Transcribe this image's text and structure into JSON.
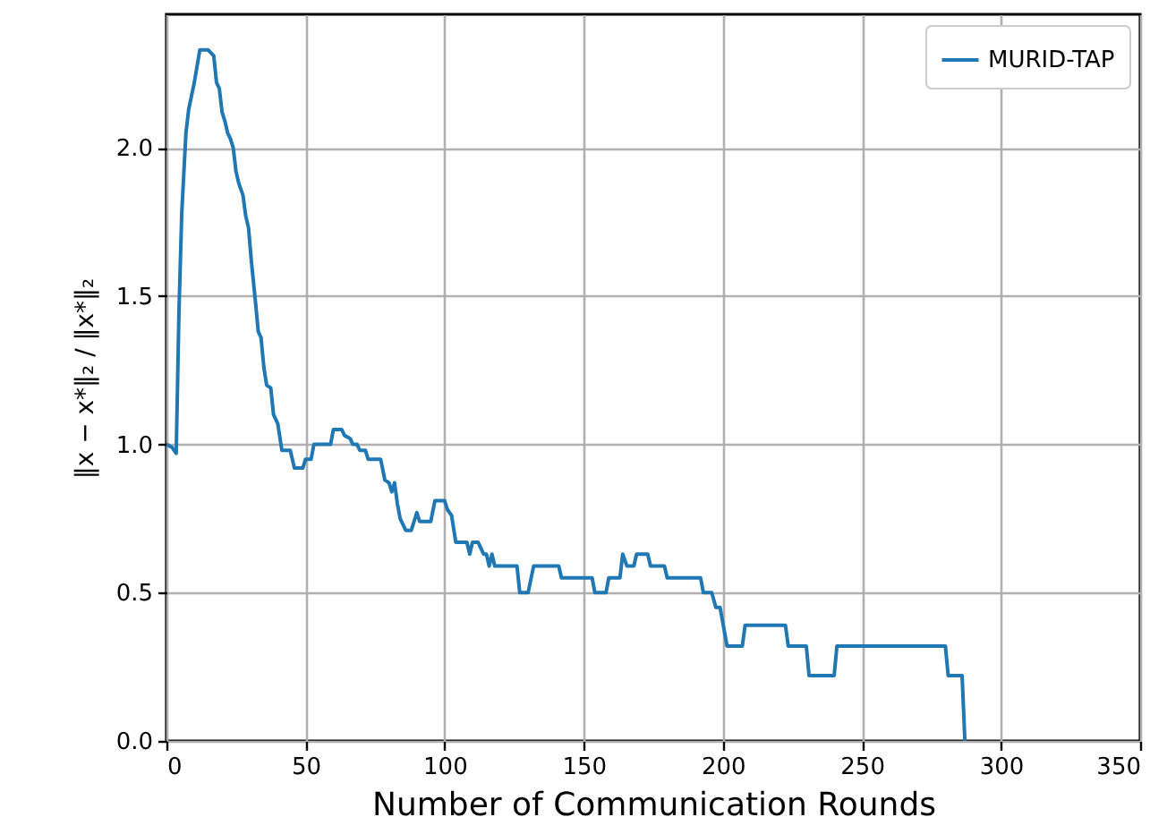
{
  "chart_data": {
    "type": "line",
    "xlabel": "Number of Communication Rounds",
    "ylabel": "‖x − x*‖₂ / ‖x*‖₂",
    "xlim": [
      0,
      350
    ],
    "ylim": [
      0,
      2.45
    ],
    "xticks": [
      0,
      50,
      100,
      150,
      200,
      250,
      300,
      350
    ],
    "yticks": [
      {
        "value": 0,
        "label": "0.0"
      },
      0.5,
      {
        "value": 1,
        "label": "1.0"
      },
      1.5,
      {
        "value": 2,
        "label": "2.0"
      }
    ],
    "grid": true,
    "legend": "top right",
    "series": [
      {
        "name": "MURID-TAP",
        "color": "#1f77b4",
        "x": [
          0,
          2,
          3.5,
          4.5,
          5.5,
          7,
          8,
          10,
          12,
          15,
          17,
          18,
          19,
          20,
          21,
          22,
          23,
          24,
          25,
          26,
          27.5,
          28.5,
          29.5,
          30.5,
          32,
          33,
          34,
          35,
          36,
          37.5,
          38.5,
          40,
          41.5,
          44.5,
          46,
          49,
          50,
          52,
          53,
          59,
          60,
          63,
          64,
          66,
          67,
          68.5,
          69.5,
          71.5,
          72.5,
          77,
          78.5,
          80,
          81,
          82,
          83,
          84,
          86,
          88,
          90,
          91,
          95,
          96.5,
          100,
          101,
          102.5,
          104,
          108,
          109,
          110,
          112,
          114,
          115,
          116,
          117,
          118,
          126,
          127,
          130,
          132,
          141,
          142,
          153,
          154,
          158,
          159,
          163,
          164,
          165.5,
          168,
          169,
          173,
          174,
          179,
          180,
          192,
          193,
          196,
          197.5,
          199,
          201.5,
          207,
          208,
          222.5,
          223.5,
          230,
          231,
          240,
          241,
          280,
          281,
          286,
          287
        ],
        "values": [
          1.0,
          0.99,
          0.97,
          1.45,
          1.78,
          2.05,
          2.13,
          2.22,
          2.33,
          2.33,
          2.31,
          2.22,
          2.2,
          2.12,
          2.09,
          2.05,
          2.03,
          2.0,
          1.92,
          1.88,
          1.84,
          1.77,
          1.73,
          1.62,
          1.48,
          1.38,
          1.36,
          1.26,
          1.2,
          1.19,
          1.1,
          1.07,
          0.98,
          0.98,
          0.92,
          0.92,
          0.95,
          0.95,
          1.0,
          1.0,
          1.05,
          1.05,
          1.03,
          1.02,
          1.0,
          1.0,
          0.98,
          0.98,
          0.95,
          0.95,
          0.88,
          0.87,
          0.84,
          0.87,
          0.8,
          0.75,
          0.71,
          0.71,
          0.77,
          0.74,
          0.74,
          0.81,
          0.81,
          0.78,
          0.76,
          0.67,
          0.67,
          0.63,
          0.67,
          0.67,
          0.63,
          0.63,
          0.59,
          0.63,
          0.59,
          0.59,
          0.5,
          0.5,
          0.59,
          0.59,
          0.55,
          0.55,
          0.5,
          0.5,
          0.55,
          0.55,
          0.63,
          0.59,
          0.59,
          0.63,
          0.63,
          0.59,
          0.59,
          0.55,
          0.55,
          0.5,
          0.5,
          0.45,
          0.45,
          0.32,
          0.32,
          0.39,
          0.39,
          0.32,
          0.32,
          0.22,
          0.22,
          0.32,
          0.32,
          0.22,
          0.22,
          0.0
        ]
      }
    ]
  }
}
